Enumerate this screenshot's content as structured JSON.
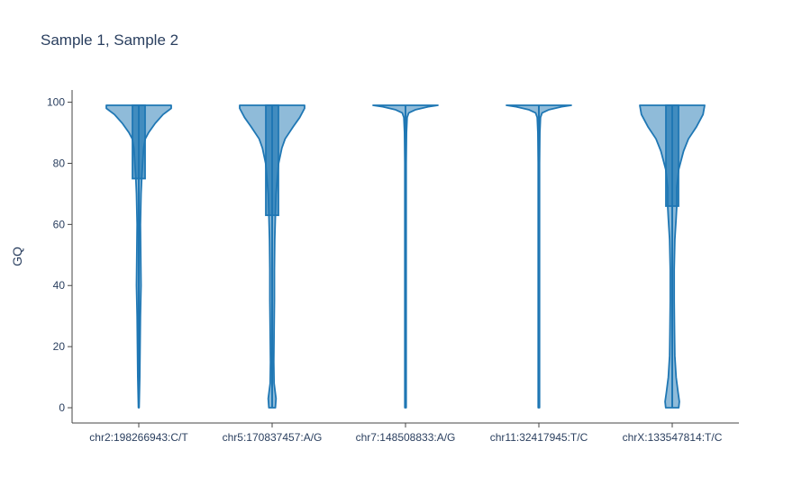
{
  "chart_data": {
    "type": "violin",
    "title": "Sample 1, Sample 2",
    "ylabel": "GQ",
    "xlabel": "",
    "ylim": [
      -5,
      104
    ],
    "yticks": [
      0,
      20,
      40,
      60,
      80,
      100
    ],
    "grid": false,
    "legend": "none",
    "colors": {
      "fill": "#1f77b4",
      "fill_opacity": 0.5,
      "line": "#1f77b4",
      "text": "#2a3f5f",
      "axis": "#444444"
    },
    "categories": [
      "chr2:198266943:C/T",
      "chr5:170837457:A/G",
      "chr7:148508833:A/G",
      "chr11:32417945:T/C",
      "chrX:133547814:T/C"
    ],
    "violins": [
      {
        "category": "chr2:198266943:C/T",
        "box": {
          "q1": 75,
          "median": 99,
          "q3": 99,
          "lower_fence": 0,
          "upper_fence": 99
        },
        "density": [
          [
            0,
            0.01
          ],
          [
            10,
            0.03
          ],
          [
            20,
            0.04
          ],
          [
            30,
            0.05
          ],
          [
            40,
            0.07
          ],
          [
            50,
            0.06
          ],
          [
            60,
            0.05
          ],
          [
            70,
            0.07
          ],
          [
            75,
            0.09
          ],
          [
            80,
            0.12
          ],
          [
            85,
            0.15
          ],
          [
            88,
            0.2
          ],
          [
            90,
            0.3
          ],
          [
            93,
            0.5
          ],
          [
            96,
            0.75
          ],
          [
            98,
            1.0
          ],
          [
            99,
            1.0
          ]
        ]
      },
      {
        "category": "chr5:170837457:A/G",
        "box": {
          "q1": 63,
          "median": 99,
          "q3": 99,
          "lower_fence": 0,
          "upper_fence": 99
        },
        "density": [
          [
            0,
            0.1
          ],
          [
            3,
            0.12
          ],
          [
            8,
            0.06
          ],
          [
            15,
            0.05
          ],
          [
            25,
            0.06
          ],
          [
            35,
            0.07
          ],
          [
            45,
            0.07
          ],
          [
            55,
            0.08
          ],
          [
            63,
            0.1
          ],
          [
            70,
            0.12
          ],
          [
            80,
            0.2
          ],
          [
            85,
            0.3
          ],
          [
            88,
            0.4
          ],
          [
            92,
            0.65
          ],
          [
            95,
            0.85
          ],
          [
            98,
            1.0
          ],
          [
            99,
            1.0
          ]
        ]
      },
      {
        "category": "chr7:148508833:A/G",
        "box": {
          "q1": 99,
          "median": 99,
          "q3": 99,
          "lower_fence": 0,
          "upper_fence": 99
        },
        "density": [
          [
            0,
            0.02
          ],
          [
            20,
            0.02
          ],
          [
            40,
            0.02
          ],
          [
            60,
            0.02
          ],
          [
            80,
            0.02
          ],
          [
            90,
            0.03
          ],
          [
            95,
            0.05
          ],
          [
            96.5,
            0.1
          ],
          [
            97.5,
            0.3
          ],
          [
            98.5,
            0.7
          ],
          [
            99,
            1.0
          ]
        ]
      },
      {
        "category": "chr11:32417945:T/C",
        "box": {
          "q1": 99,
          "median": 99,
          "q3": 99,
          "lower_fence": 0,
          "upper_fence": 99
        },
        "density": [
          [
            0,
            0.02
          ],
          [
            20,
            0.02
          ],
          [
            40,
            0.02
          ],
          [
            60,
            0.02
          ],
          [
            80,
            0.02
          ],
          [
            90,
            0.03
          ],
          [
            95,
            0.05
          ],
          [
            96.5,
            0.1
          ],
          [
            97.5,
            0.3
          ],
          [
            98.5,
            0.7
          ],
          [
            99,
            1.0
          ]
        ]
      },
      {
        "category": "chrX:133547814:T/C",
        "box": {
          "q1": 66,
          "median": 99,
          "q3": 99,
          "lower_fence": 0,
          "upper_fence": 99
        },
        "density": [
          [
            0,
            0.2
          ],
          [
            2,
            0.22
          ],
          [
            5,
            0.18
          ],
          [
            10,
            0.12
          ],
          [
            17,
            0.08
          ],
          [
            25,
            0.07
          ],
          [
            35,
            0.06
          ],
          [
            45,
            0.06
          ],
          [
            55,
            0.08
          ],
          [
            62,
            0.12
          ],
          [
            66,
            0.14
          ],
          [
            72,
            0.14
          ],
          [
            78,
            0.2
          ],
          [
            84,
            0.35
          ],
          [
            88,
            0.5
          ],
          [
            92,
            0.75
          ],
          [
            96,
            0.95
          ],
          [
            99,
            1.0
          ]
        ]
      }
    ]
  }
}
